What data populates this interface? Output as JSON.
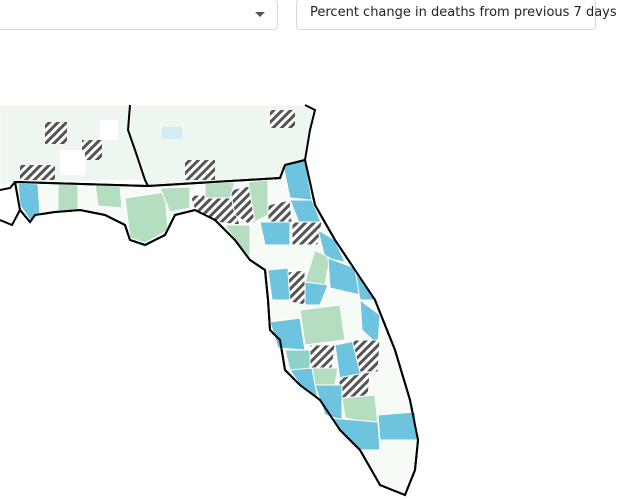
{
  "controls": {
    "metric_select": "Percent change in deaths from previous 7 days"
  }
}
